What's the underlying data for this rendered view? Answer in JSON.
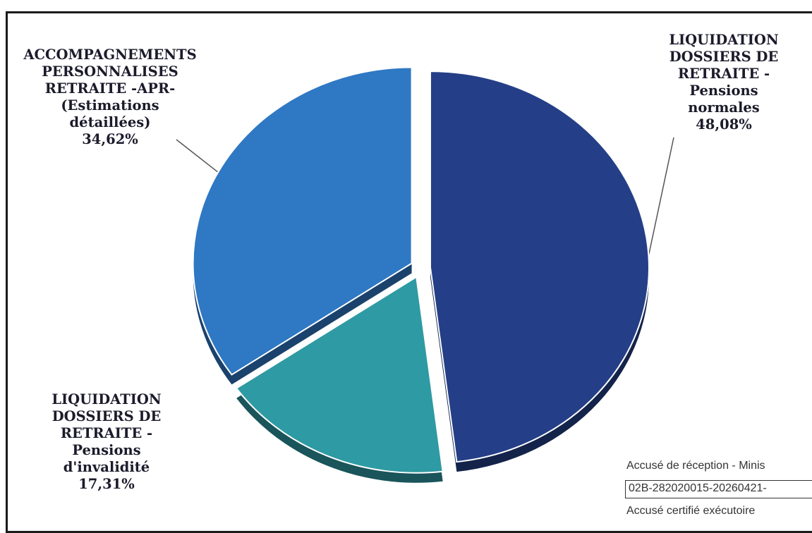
{
  "chart_data": {
    "type": "pie",
    "slices": [
      {
        "label_lines": [
          "LIQUIDATION",
          "DOSSIERS DE",
          "RETRAITE -",
          "Pensions",
          "normales"
        ],
        "value": 48.08,
        "value_label": "48,08%",
        "color": "#243f87"
      },
      {
        "label_lines": [
          "LIQUIDATION",
          "DOSSIERS DE",
          "RETRAITE -",
          "Pensions",
          "d'invalidité"
        ],
        "value": 17.31,
        "value_label": "17,31%",
        "color": "#2e9aa3"
      },
      {
        "label_lines": [
          "ACCOMPAGNEMENTS",
          "PERSONNALISES",
          "RETRAITE -APR-",
          "(Estimations",
          "détaillées)"
        ],
        "value": 34.62,
        "value_label": "34,62%",
        "color": "#2f78c4"
      }
    ]
  },
  "stamp": {
    "line1": "Accusé de réception - Minis",
    "id": "02B-282020015-20260421-",
    "line3": "Accusé certifié exécutoire"
  }
}
